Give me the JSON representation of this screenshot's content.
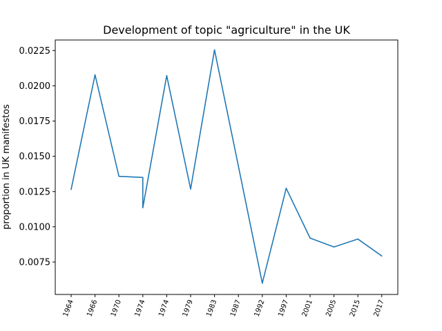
{
  "chart_data": {
    "type": "line",
    "title": "Development of topic \"agriculture\" in the UK",
    "xlabel": "",
    "ylabel": "proportion in UK manifestos",
    "categories": [
      "1964",
      "1966",
      "1970",
      "1974",
      "1974",
      "1974",
      "1979",
      "1983",
      "1987",
      "1992",
      "1997",
      "2001",
      "2005",
      "2015",
      "2017"
    ],
    "tick_labels": [
      "1964",
      "1966",
      "1970",
      "1974",
      "1974",
      "1979",
      "1983",
      "1987",
      "1992",
      "1997",
      "2001",
      "2005",
      "2015",
      "2017"
    ],
    "series": [
      {
        "values": [
          0.01265,
          0.02078,
          0.01358,
          0.0135,
          0.01135,
          0.02072,
          0.01268,
          0.02255,
          0.0143,
          0.006,
          0.01273,
          0.0092,
          0.00857,
          0.00913,
          0.00793
        ]
      }
    ],
    "ylim": [
      0.0052,
      0.02325
    ],
    "yticks": [
      "0.0075",
      "0.0100",
      "0.0125",
      "0.0150",
      "0.0175",
      "0.0200",
      "0.0225"
    ],
    "grid": false,
    "line_color": "#1f77b4"
  }
}
